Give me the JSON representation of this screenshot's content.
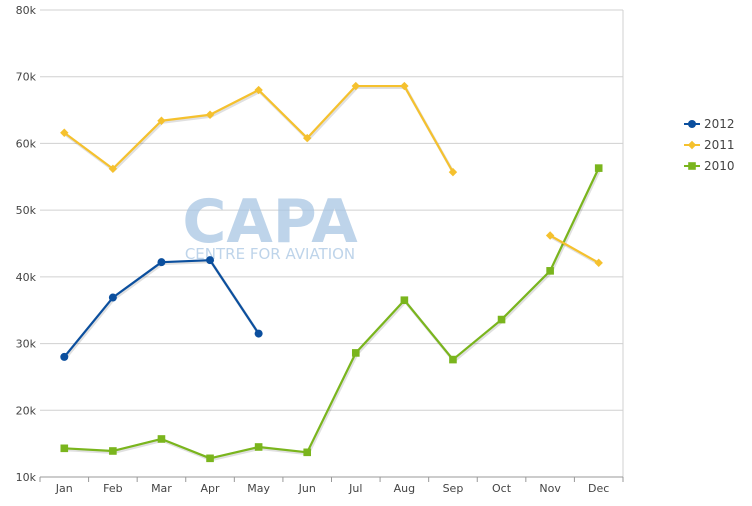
{
  "chart_data": {
    "type": "line",
    "categories": [
      "Jan",
      "Feb",
      "Mar",
      "Apr",
      "May",
      "Jun",
      "Jul",
      "Aug",
      "Sep",
      "Oct",
      "Nov",
      "Dec"
    ],
    "y_tick_labels": [
      "10k",
      "20k",
      "30k",
      "40k",
      "50k",
      "60k",
      "70k",
      "80k"
    ],
    "y_tick_values": [
      10000,
      20000,
      30000,
      40000,
      50000,
      60000,
      70000,
      80000
    ],
    "ylim": [
      10000,
      80000
    ],
    "grid": true,
    "legend_position": "right",
    "series": [
      {
        "name": "2012",
        "color": "#0b4f9e",
        "marker": "circle",
        "values": [
          28000,
          36900,
          42200,
          42500,
          31500,
          null,
          null,
          null,
          null,
          null,
          null,
          null
        ]
      },
      {
        "name": "2011",
        "color": "#f5c12e",
        "marker": "diamond",
        "values": [
          61600,
          56200,
          63400,
          64300,
          68000,
          60800,
          68600,
          68600,
          55700,
          null,
          46200,
          42100
        ]
      },
      {
        "name": "2010",
        "color": "#7ab51d",
        "marker": "square",
        "values": [
          14300,
          13900,
          15700,
          12800,
          14500,
          13700,
          28600,
          36500,
          27600,
          33600,
          40900,
          56300
        ]
      }
    ]
  },
  "watermark": {
    "logo_text": "CAPA",
    "subtitle": "CENTRE FOR AVIATION",
    "color": "#a9c6e3"
  }
}
